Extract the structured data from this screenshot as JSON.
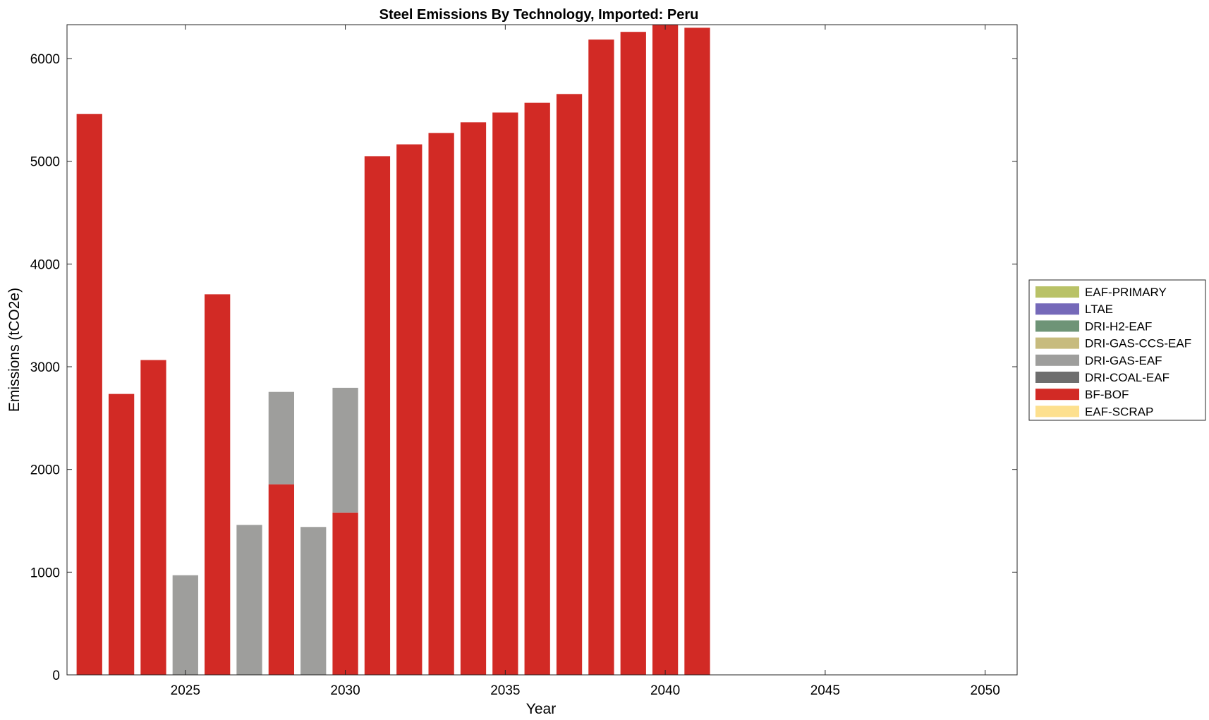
{
  "chart_data": {
    "type": "bar",
    "stacked": true,
    "title": "Steel Emissions By Technology, Imported: Peru",
    "xlabel": "Year",
    "ylabel": "Emissions (tCO2e)",
    "xlim": [
      2021.3,
      2051
    ],
    "ylim": [
      0,
      6330
    ],
    "x_ticks": [
      2025,
      2030,
      2035,
      2040,
      2045,
      2050
    ],
    "y_ticks": [
      0,
      1000,
      2000,
      3000,
      4000,
      5000,
      6000
    ],
    "grid": false,
    "legend_position": "right",
    "x": [
      2022,
      2023,
      2024,
      2025,
      2026,
      2027,
      2028,
      2029,
      2030,
      2031,
      2032,
      2033,
      2034,
      2035,
      2036,
      2037,
      2038,
      2039,
      2040,
      2041
    ],
    "series": [
      {
        "name": "EAF-SCRAP",
        "color": "#FDE08E",
        "values": [
          0,
          0,
          0,
          0,
          0,
          0,
          0,
          0,
          0,
          0,
          0,
          0,
          0,
          0,
          0,
          0,
          0,
          0,
          0,
          0
        ]
      },
      {
        "name": "BF-BOF",
        "color": "#D22A25",
        "values": [
          5460,
          2735,
          3065,
          0,
          3705,
          0,
          1855,
          0,
          1580,
          5050,
          5165,
          5275,
          5380,
          5475,
          5570,
          5655,
          6185,
          6260,
          6330,
          6300
        ]
      },
      {
        "name": "DRI-COAL-EAF",
        "color": "#6E6E6E",
        "values": [
          0,
          0,
          0,
          0,
          0,
          0,
          0,
          0,
          0,
          0,
          0,
          0,
          0,
          0,
          0,
          0,
          0,
          0,
          0,
          0
        ]
      },
      {
        "name": "DRI-GAS-EAF",
        "color": "#9E9E9C",
        "values": [
          0,
          0,
          0,
          970,
          0,
          1460,
          900,
          1440,
          1215,
          0,
          0,
          0,
          0,
          0,
          0,
          0,
          0,
          0,
          0,
          0
        ]
      },
      {
        "name": "DRI-GAS-CCS-EAF",
        "color": "#C7BB7E",
        "values": [
          0,
          0,
          0,
          0,
          0,
          0,
          0,
          0,
          0,
          0,
          0,
          0,
          0,
          0,
          0,
          0,
          0,
          0,
          0,
          0
        ]
      },
      {
        "name": "DRI-H2-EAF",
        "color": "#6E9477",
        "values": [
          0,
          0,
          0,
          0,
          0,
          0,
          0,
          0,
          0,
          0,
          0,
          0,
          0,
          0,
          0,
          0,
          0,
          0,
          0,
          0
        ]
      },
      {
        "name": "LTAE",
        "color": "#7569B9",
        "values": [
          0,
          0,
          0,
          0,
          0,
          0,
          0,
          0,
          0,
          0,
          0,
          0,
          0,
          0,
          0,
          0,
          0,
          0,
          0,
          0
        ]
      },
      {
        "name": "EAF-PRIMARY",
        "color": "#B9C267",
        "values": [
          0,
          0,
          0,
          0,
          0,
          0,
          0,
          0,
          0,
          0,
          0,
          0,
          0,
          0,
          0,
          0,
          0,
          0,
          0,
          0
        ]
      }
    ],
    "legend_order": [
      "EAF-PRIMARY",
      "LTAE",
      "DRI-H2-EAF",
      "DRI-GAS-CCS-EAF",
      "DRI-GAS-EAF",
      "DRI-COAL-EAF",
      "BF-BOF",
      "EAF-SCRAP"
    ]
  }
}
